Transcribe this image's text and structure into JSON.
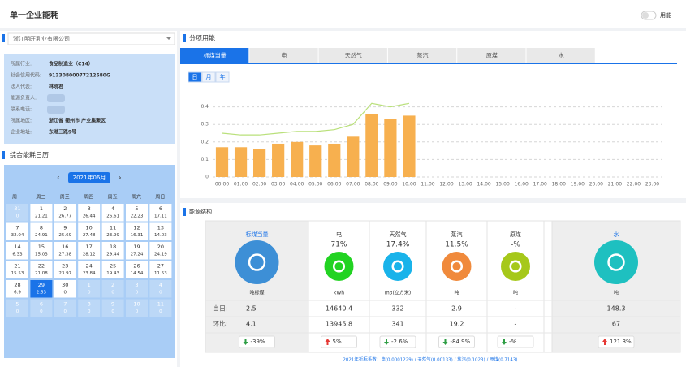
{
  "header": {
    "title": "单一企业能耗",
    "toggle_label": "用能"
  },
  "company": {
    "selected": "浙江明旺乳业有限公司",
    "info": [
      {
        "label": "所属行业:",
        "value": "食品制造业（C14）"
      },
      {
        "label": "社会信用代码:",
        "value": "91330800077212580G"
      },
      {
        "label": "法人代表:",
        "value": "林晓君"
      },
      {
        "label": "能源负责人:"
      },
      {
        "label": "联系电话:"
      },
      {
        "label": "所属地区:",
        "value": "浙江省 衢州市 产业集聚区"
      },
      {
        "label": "企业地址:",
        "value": "东港三路9号"
      }
    ]
  },
  "calendar": {
    "title": "综合能耗日历",
    "month": "2021年06月",
    "weekdays": [
      "周一",
      "周二",
      "周三",
      "周四",
      "周五",
      "周六",
      "周日"
    ],
    "leading": [
      {
        "day": "31",
        "value": "0"
      }
    ],
    "days": [
      {
        "day": "1",
        "value": "21.21"
      },
      {
        "day": "2",
        "value": "26.77"
      },
      {
        "day": "3",
        "value": "26.44"
      },
      {
        "day": "4",
        "value": "26.61"
      },
      {
        "day": "5",
        "value": "22.23"
      },
      {
        "day": "6",
        "value": "17.11"
      },
      {
        "day": "7",
        "value": "32.04"
      },
      {
        "day": "8",
        "value": "24.91"
      },
      {
        "day": "9",
        "value": "25.69"
      },
      {
        "day": "10",
        "value": "27.48"
      },
      {
        "day": "11",
        "value": "23.99"
      },
      {
        "day": "12",
        "value": "16.31"
      },
      {
        "day": "13",
        "value": "14.03"
      },
      {
        "day": "14",
        "value": "6.33"
      },
      {
        "day": "15",
        "value": "15.03"
      },
      {
        "day": "16",
        "value": "27.38"
      },
      {
        "day": "17",
        "value": "28.12"
      },
      {
        "day": "18",
        "value": "29.44"
      },
      {
        "day": "19",
        "value": "27.24"
      },
      {
        "day": "20",
        "value": "24.19"
      },
      {
        "day": "21",
        "value": "15.53"
      },
      {
        "day": "22",
        "value": "21.08"
      },
      {
        "day": "23",
        "value": "23.97"
      },
      {
        "day": "24",
        "value": "23.84"
      },
      {
        "day": "25",
        "value": "19.43"
      },
      {
        "day": "26",
        "value": "14.54"
      },
      {
        "day": "27",
        "value": "11.53"
      },
      {
        "day": "28",
        "value": "6.9"
      },
      {
        "day": "29",
        "value": "2.53",
        "selected": true
      },
      {
        "day": "30",
        "value": "0"
      }
    ],
    "trailing": [
      {
        "day": "1",
        "value": "0"
      },
      {
        "day": "2",
        "value": "0"
      },
      {
        "day": "3",
        "value": "0"
      },
      {
        "day": "4",
        "value": "0"
      },
      {
        "day": "5",
        "value": "0"
      },
      {
        "day": "6",
        "value": "0"
      },
      {
        "day": "7",
        "value": "0"
      },
      {
        "day": "8",
        "value": "0"
      },
      {
        "day": "9",
        "value": "0"
      },
      {
        "day": "10",
        "value": "0"
      },
      {
        "day": "11",
        "value": "0"
      }
    ]
  },
  "subitem": {
    "title": "分项用能",
    "tabs": [
      {
        "label": "标煤当量",
        "active": true
      },
      {
        "label": "电"
      },
      {
        "label": "天然气"
      },
      {
        "label": "蒸汽"
      },
      {
        "label": "原煤"
      },
      {
        "label": "水"
      }
    ],
    "periods": [
      {
        "label": "日",
        "active": true
      },
      {
        "label": "月"
      },
      {
        "label": "年"
      }
    ]
  },
  "chart_data": {
    "type": "bar",
    "categories": [
      "00:00",
      "01:00",
      "02:00",
      "03:00",
      "04:00",
      "05:00",
      "06:00",
      "07:00",
      "08:00",
      "09:00",
      "10:00",
      "11:00",
      "12:00",
      "13:00",
      "14:00",
      "15:00",
      "16:00",
      "17:00",
      "18:00",
      "19:00",
      "20:00",
      "21:00",
      "22:00",
      "23:00"
    ],
    "series": [
      {
        "type": "bar",
        "color": "#f7b04f",
        "values": [
          0.17,
          0.17,
          0.16,
          0.19,
          0.2,
          0.18,
          0.19,
          0.23,
          0.36,
          0.33,
          0.35,
          null,
          null,
          null,
          null,
          null,
          null,
          null,
          null,
          null,
          null,
          null,
          null,
          null
        ]
      },
      {
        "type": "line",
        "color": "#b9e07a",
        "values": [
          0.25,
          0.24,
          0.24,
          0.25,
          0.26,
          0.26,
          0.27,
          0.3,
          0.42,
          0.4,
          0.42,
          null,
          null,
          null,
          null,
          null,
          null,
          null,
          null,
          null,
          null,
          null,
          null,
          null
        ]
      }
    ],
    "ylim": [
      0,
      0.5
    ],
    "yticks": [
      0,
      0.1,
      0.2,
      0.3,
      0.4
    ],
    "grid": true
  },
  "structure": {
    "title": "能源结构",
    "row_labels": [
      "当日:",
      "环比:"
    ],
    "cards": [
      {
        "name": "标煤当量",
        "unit": "吨标煤",
        "today": "2.5",
        "previous": "4.1",
        "change": "-39%",
        "trend": "down",
        "color": "#3d8fd6",
        "highlight": true
      },
      {
        "name": "电",
        "share": "71%",
        "unit": "kWh",
        "today": "14640.4",
        "previous": "13945.8",
        "change": "5%",
        "trend": "up",
        "color": "#22d322"
      },
      {
        "name": "天然气",
        "share": "17.4%",
        "unit": "m3(立方米)",
        "today": "332",
        "previous": "341",
        "change": "-2.6%",
        "trend": "down",
        "color": "#19b3ea"
      },
      {
        "name": "蒸汽",
        "share": "11.5%",
        "unit": "吨",
        "today": "2.9",
        "previous": "19.2",
        "change": "-84.9%",
        "trend": "down",
        "color": "#f08a3c"
      },
      {
        "name": "原煤",
        "share": "-%",
        "unit": "吨",
        "today": "-",
        "previous": "-",
        "change": "-%",
        "trend": "down",
        "color": "#a6c81a"
      },
      {
        "name": "水",
        "unit": "吨",
        "today": "148.3",
        "previous": "67",
        "change": "121.3%",
        "trend": "up",
        "color": "#1ec0c0",
        "highlight": true
      }
    ],
    "footnote": "2021年折标系数：电(0.0001229) / 天然气(0.00133) / 蒸汽(0.1023) / 原煤(0.7143)"
  }
}
